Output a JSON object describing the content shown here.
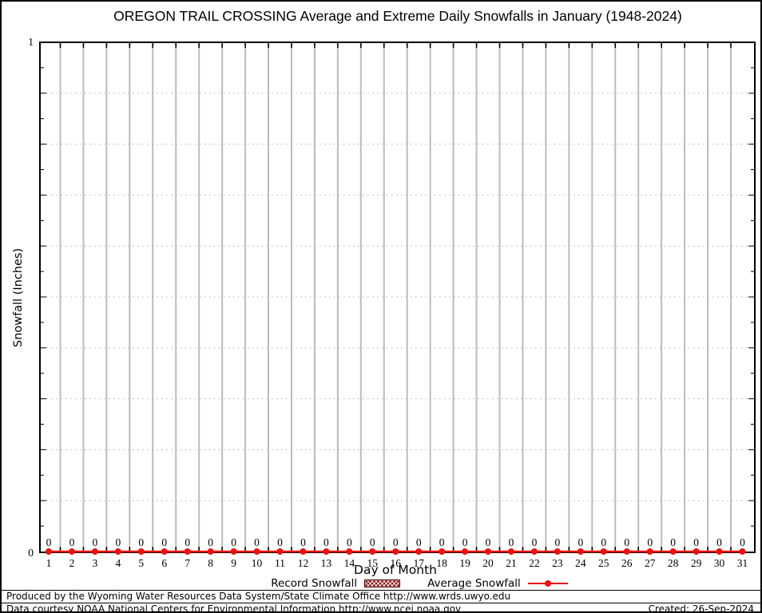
{
  "title": "OREGON TRAIL CROSSING Average and Extreme Daily Snowfalls in January (1948-2024)",
  "chart_data": {
    "type": "line",
    "title": "OREGON TRAIL CROSSING Average and Extreme Daily Snowfalls in January (1948-2024)",
    "xlabel": "Day of Month",
    "ylabel": "Snowfall (Inches)",
    "x": [
      1,
      2,
      3,
      4,
      5,
      6,
      7,
      8,
      9,
      10,
      11,
      12,
      13,
      14,
      15,
      16,
      17,
      18,
      19,
      20,
      21,
      22,
      23,
      24,
      25,
      26,
      27,
      28,
      29,
      30,
      31
    ],
    "series": [
      {
        "name": "Record Snowfall",
        "style": "hatched-box",
        "color": "#8c1414",
        "values": [
          0,
          0,
          0,
          0,
          0,
          0,
          0,
          0,
          0,
          0,
          0,
          0,
          0,
          0,
          0,
          0,
          0,
          0,
          0,
          0,
          0,
          0,
          0,
          0,
          0,
          0,
          0,
          0,
          0,
          0,
          0
        ]
      },
      {
        "name": "Average Snowfall",
        "style": "line-with-points",
        "color": "#e8120e",
        "values": [
          0,
          0,
          0,
          0,
          0,
          0,
          0,
          0,
          0,
          0,
          0,
          0,
          0,
          0,
          0,
          0,
          0,
          0,
          0,
          0,
          0,
          0,
          0,
          0,
          0,
          0,
          0,
          0,
          0,
          0,
          0
        ]
      }
    ],
    "value_labels": [
      "0",
      "0",
      "0",
      "0",
      "0",
      "0",
      "0",
      "0",
      "0",
      "0",
      "0",
      "0",
      "0",
      "0",
      "0",
      "0",
      "0",
      "0",
      "0",
      "0",
      "0",
      "0",
      "0",
      "0",
      "0",
      "0",
      "0",
      "0",
      "0",
      "0",
      "0"
    ],
    "ylim": [
      0,
      1
    ],
    "ytick_labels": {
      "min": "0",
      "max": "1"
    },
    "y_major_grid_step": 0.1,
    "y_minor_tick_step": 0.05,
    "grid": {
      "vertical": "solid gray lines at day boundaries (1.5 through 30.5)",
      "horizontal": "dotted gray lines every 0.1"
    },
    "legend_position": "bottom-center"
  },
  "legend": {
    "items": [
      {
        "label": "Record Snowfall",
        "swatch": "hatched-box",
        "color": "#8c1414"
      },
      {
        "label": "Average Snowfall",
        "swatch": "line-point",
        "color": "#e8120e"
      }
    ]
  },
  "footer": {
    "produced_by": "Produced by the Wyoming Water Resources Data System/State Climate Office http://www.wrds.uwyo.edu",
    "data_courtesy": "Data courtesy NOAA National Centers for Environmental Information http://www.ncei.noaa.gov",
    "created": "Created: 26-Sep-2024"
  },
  "colors": {
    "background": "#ffffff",
    "border": "#000000",
    "grid_vertical": "#bcbcbc",
    "grid_horizontal": "#b0b0b0",
    "series_red": "#e8120e",
    "record_maroon": "#8c1414",
    "text": "#000000"
  }
}
